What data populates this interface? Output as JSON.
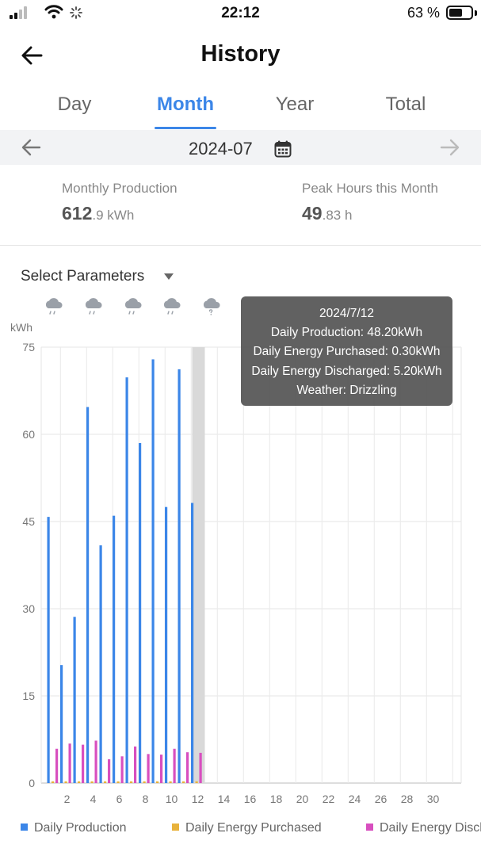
{
  "status_bar": {
    "time": "22:12",
    "battery": "63 %",
    "battery_level": 0.63
  },
  "header": {
    "title": "History"
  },
  "tabs": [
    {
      "label": "Day",
      "active": false
    },
    {
      "label": "Month",
      "active": true
    },
    {
      "label": "Year",
      "active": false
    },
    {
      "label": "Total",
      "active": false
    }
  ],
  "date_bar": {
    "value": "2024-07"
  },
  "stats": {
    "production": {
      "label": "Monthly Production",
      "int": "612",
      "rest": ".9 kWh"
    },
    "peak": {
      "label": "Peak Hours this Month",
      "int": "49",
      "rest": ".83 h"
    }
  },
  "params": {
    "label": "Select Parameters"
  },
  "weather_icons": [
    "cloud-drizzle-icon",
    "cloud-drizzle-icon",
    "cloud-drizzle-icon",
    "cloud-drizzle-icon",
    "cloud-unknown-icon"
  ],
  "tooltip": {
    "date": "2024/7/12",
    "production": "Daily Production: 48.20kWh",
    "purchased": "Daily Energy Purchased: 0.30kWh",
    "discharged": "Daily Energy Discharged: 5.20kWh",
    "weather": "Weather: Drizzling"
  },
  "colors": {
    "accent": "#3b86e8",
    "production": "#3b86e8",
    "purchased": "#e8b23b",
    "discharged": "#d84fbf"
  },
  "chart_data": {
    "type": "bar",
    "ylabel": "kWh",
    "ylim": [
      0,
      75
    ],
    "yticks": [
      0,
      15,
      30,
      45,
      60,
      75
    ],
    "xlim": [
      1,
      31
    ],
    "xticks": [
      2,
      4,
      6,
      8,
      10,
      12,
      14,
      16,
      18,
      20,
      22,
      24,
      26,
      28,
      30
    ],
    "days": [
      1,
      2,
      3,
      4,
      5,
      6,
      7,
      8,
      9,
      10,
      11,
      12
    ],
    "highlight_day": 12,
    "grid": true,
    "legend_position": "bottom",
    "series": [
      {
        "name": "Daily Production",
        "values": [
          45.8,
          20.3,
          28.6,
          64.7,
          40.9,
          46.0,
          69.8,
          58.5,
          72.9,
          47.5,
          71.2,
          48.2
        ]
      },
      {
        "name": "Daily Energy Purchased",
        "values": [
          0.3,
          0.3,
          0.3,
          0.3,
          0.3,
          0.3,
          0.3,
          0.3,
          0.3,
          0.3,
          0.3,
          0.3
        ]
      },
      {
        "name": "Daily Energy Discharged",
        "values": [
          5.9,
          6.8,
          6.6,
          7.3,
          4.1,
          4.6,
          6.3,
          5.0,
          4.9,
          5.9,
          5.3,
          5.2
        ]
      }
    ]
  }
}
